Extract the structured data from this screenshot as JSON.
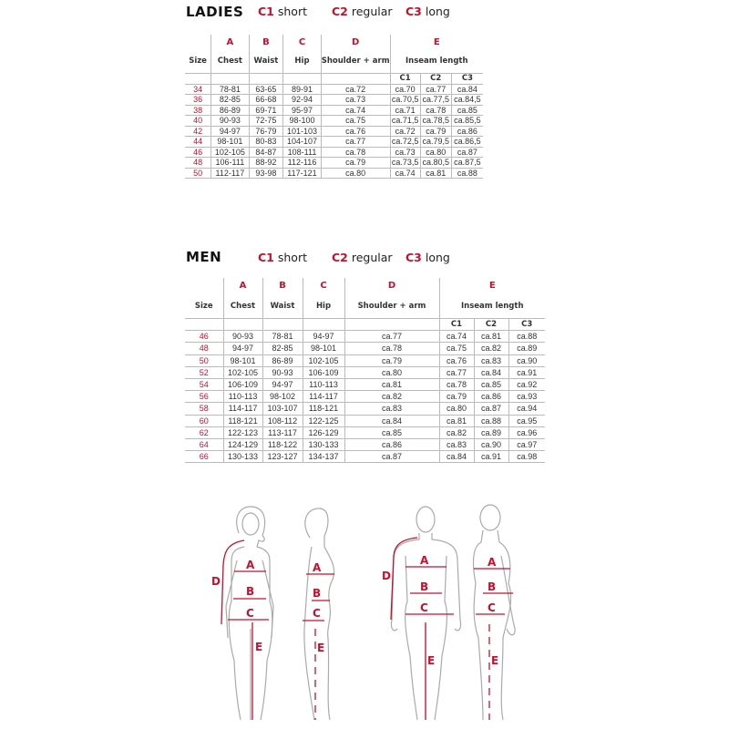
{
  "legend": [
    {
      "code": "C1",
      "label": "short"
    },
    {
      "code": "C2",
      "label": "regular"
    },
    {
      "code": "C3",
      "label": "long"
    }
  ],
  "ladies": {
    "title": "LADIES",
    "letters": [
      "",
      "A",
      "B",
      "C",
      "D",
      "E"
    ],
    "headers": [
      "Size",
      "Chest",
      "Waist",
      "Hip",
      "Shoulder + arm",
      "Inseam length"
    ],
    "sub": [
      "C1",
      "C2",
      "C3"
    ],
    "rows": [
      [
        "34",
        "78-81",
        "63-65",
        "89-91",
        "ca.72",
        "ca.70",
        "ca.77",
        "ca.84"
      ],
      [
        "36",
        "82-85",
        "66-68",
        "92-94",
        "ca.73",
        "ca.70,5",
        "ca.77,5",
        "ca.84,5"
      ],
      [
        "38",
        "86-89",
        "69-71",
        "95-97",
        "ca.74",
        "ca.71",
        "ca.78",
        "ca.85"
      ],
      [
        "40",
        "90-93",
        "72-75",
        "98-100",
        "ca.75",
        "ca.71,5",
        "ca.78,5",
        "ca.85,5"
      ],
      [
        "42",
        "94-97",
        "76-79",
        "101-103",
        "ca.76",
        "ca.72",
        "ca.79",
        "ca.86"
      ],
      [
        "44",
        "98-101",
        "80-83",
        "104-107",
        "ca.77",
        "ca.72,5",
        "ca.79,5",
        "ca.86,5"
      ],
      [
        "46",
        "102-105",
        "84-87",
        "108-111",
        "ca.78",
        "ca.73",
        "ca.80",
        "ca.87"
      ],
      [
        "48",
        "106-111",
        "88-92",
        "112-116",
        "ca.79",
        "ca.73,5",
        "ca.80,5",
        "ca.87,5"
      ],
      [
        "50",
        "112-117",
        "93-98",
        "117-121",
        "ca.80",
        "ca.74",
        "ca.81",
        "ca.88"
      ]
    ]
  },
  "men": {
    "title": "MEN",
    "letters": [
      "",
      "A",
      "B",
      "C",
      "D",
      "E"
    ],
    "headers": [
      "Size",
      "Chest",
      "Waist",
      "Hip",
      "Shoulder + arm",
      "Inseam length"
    ],
    "sub": [
      "C1",
      "C2",
      "C3"
    ],
    "rows": [
      [
        "46",
        "90-93",
        "78-81",
        "94-97",
        "ca.77",
        "ca.74",
        "ca.81",
        "ca.88"
      ],
      [
        "48",
        "94-97",
        "82-85",
        "98-101",
        "ca.78",
        "ca.75",
        "ca.82",
        "ca.89"
      ],
      [
        "50",
        "98-101",
        "86-89",
        "102-105",
        "ca.79",
        "ca.76",
        "ca.83",
        "ca.90"
      ],
      [
        "52",
        "102-105",
        "90-93",
        "106-109",
        "ca.80",
        "ca.77",
        "ca.84",
        "ca.91"
      ],
      [
        "54",
        "106-109",
        "94-97",
        "110-113",
        "ca.81",
        "ca.78",
        "ca.85",
        "ca.92"
      ],
      [
        "56",
        "110-113",
        "98-102",
        "114-117",
        "ca.82",
        "ca.79",
        "ca.86",
        "ca.93"
      ],
      [
        "58",
        "114-117",
        "103-107",
        "118-121",
        "ca.83",
        "ca.80",
        "ca.87",
        "ca.94"
      ],
      [
        "60",
        "118-121",
        "108-112",
        "122-125",
        "ca.84",
        "ca.81",
        "ca.88",
        "ca.95"
      ],
      [
        "62",
        "122-123",
        "113-117",
        "126-129",
        "ca.85",
        "ca.82",
        "ca.89",
        "ca.96"
      ],
      [
        "64",
        "124-129",
        "118-122",
        "130-133",
        "ca.86",
        "ca.83",
        "ca.90",
        "ca.97"
      ],
      [
        "66",
        "130-133",
        "123-127",
        "134-137",
        "ca.87",
        "ca.84",
        "ca.91",
        "ca.98"
      ]
    ]
  },
  "figures": {
    "labels": {
      "a": "A",
      "b": "B",
      "c": "C",
      "d": "D",
      "e": "E"
    }
  },
  "colors": {
    "accent": "#c8102e",
    "outline": "#999999",
    "grid": "#bbbbbb"
  }
}
